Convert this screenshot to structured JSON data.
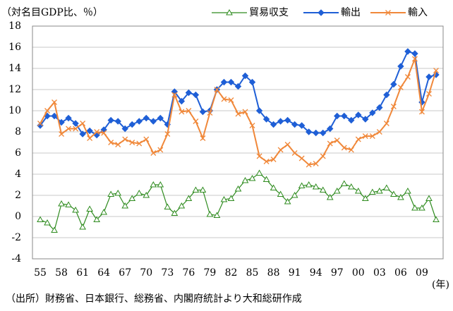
{
  "chart_data": {
    "type": "line",
    "ylabel": "（対名目GDP比、％）",
    "xunit": "(年)",
    "source": "（出所）財務省、日本銀行、総務省、内閣府統計より大和総研作成",
    "categories": [
      "55",
      null,
      null,
      "58",
      null,
      null,
      "61",
      null,
      null,
      "64",
      null,
      null,
      "67",
      null,
      null,
      "70",
      null,
      null,
      "73",
      null,
      null,
      "76",
      null,
      null,
      "79",
      null,
      null,
      "82",
      null,
      null,
      "85",
      null,
      null,
      "88",
      null,
      null,
      "91",
      null,
      null,
      "94",
      null,
      null,
      "97",
      null,
      null,
      "00",
      null,
      null,
      "03",
      null,
      null,
      "06",
      null,
      null,
      "09",
      null,
      null
    ],
    "series": [
      {
        "name": "貿易収支",
        "color": "#2e8b1e",
        "marker": "triangle",
        "values": [
          -0.3,
          -0.6,
          -1.3,
          1.2,
          1.1,
          0.6,
          -1.0,
          0.7,
          -0.3,
          0.4,
          2.1,
          2.2,
          1.0,
          1.7,
          2.2,
          2.0,
          3.0,
          3.0,
          0.9,
          0.3,
          1.0,
          1.7,
          2.5,
          2.5,
          0.2,
          0.1,
          1.6,
          1.7,
          2.6,
          3.4,
          3.6,
          4.1,
          3.5,
          2.7,
          2.1,
          1.4,
          2.0,
          2.9,
          3.0,
          2.8,
          2.5,
          1.8,
          2.4,
          3.1,
          2.8,
          2.4,
          1.7,
          2.3,
          2.4,
          2.7,
          2.1,
          1.8,
          2.4,
          0.8,
          0.8,
          1.7,
          -0.3
        ]
      },
      {
        "name": "輸出",
        "color": "#1f5fd6",
        "marker": "diamond",
        "values": [
          8.6,
          9.5,
          9.5,
          8.9,
          9.3,
          8.8,
          7.8,
          8.1,
          7.7,
          8.2,
          9.1,
          9.0,
          8.3,
          8.7,
          9.0,
          9.3,
          9.0,
          9.3,
          8.7,
          11.8,
          10.9,
          11.7,
          11.5,
          9.9,
          10.0,
          12.0,
          12.7,
          12.7,
          12.3,
          13.3,
          12.7,
          10.0,
          9.2,
          8.7,
          9.0,
          9.1,
          8.7,
          8.6,
          8.0,
          7.9,
          7.9,
          8.3,
          9.5,
          9.5,
          9.1,
          9.6,
          9.2,
          9.8,
          10.3,
          11.5,
          12.5,
          14.2,
          15.6,
          15.4,
          10.8,
          13.2,
          13.4
        ]
      },
      {
        "name": "輸入",
        "color": "#f0883a",
        "marker": "x",
        "values": [
          8.8,
          10.0,
          10.8,
          7.8,
          8.3,
          8.3,
          8.8,
          7.4,
          8.0,
          7.9,
          7.0,
          6.8,
          7.3,
          7.0,
          6.9,
          7.3,
          6.0,
          6.3,
          7.8,
          11.5,
          9.9,
          10.0,
          9.0,
          7.4,
          9.8,
          12.0,
          11.1,
          11.0,
          9.7,
          9.9,
          8.6,
          5.7,
          5.2,
          5.4,
          6.3,
          6.8,
          6.0,
          5.5,
          4.9,
          5.0,
          5.7,
          6.9,
          7.2,
          6.5,
          6.3,
          7.3,
          7.6,
          7.6,
          8.0,
          8.8,
          10.4,
          12.2,
          13.2,
          14.9,
          9.9,
          11.6,
          13.8
        ]
      }
    ],
    "ylim": [
      -4,
      18
    ],
    "yticks": [
      -4,
      -2,
      0,
      2,
      4,
      6,
      8,
      10,
      12,
      14,
      16,
      18
    ],
    "grid": true,
    "legend": "top-right"
  }
}
